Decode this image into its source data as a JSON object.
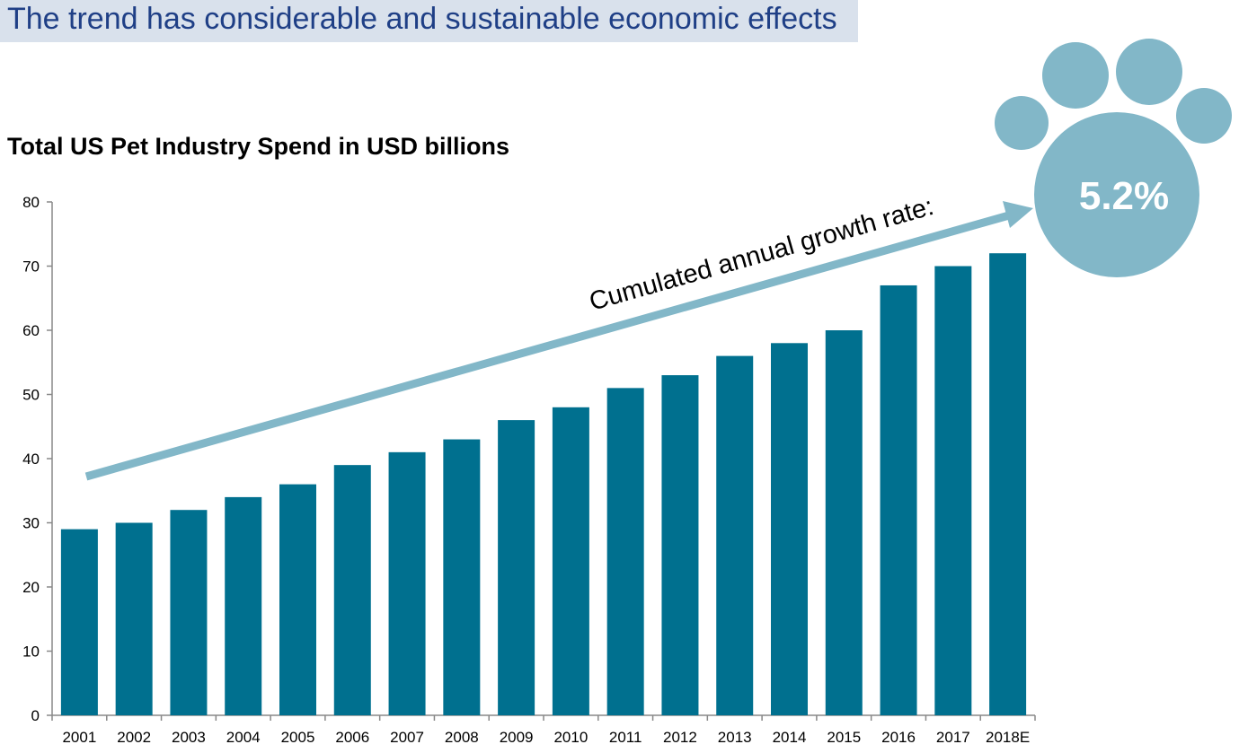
{
  "slide": {
    "title": "The trend has considerable and sustainable economic effects"
  },
  "colors": {
    "bar": "#00708f",
    "arrow": "#82b7c8",
    "paw": "#82b7c8",
    "title_band": "#d9e1ec",
    "title_text": "#1f3f86"
  },
  "annotation": {
    "arrow_label": "Cumulated annual growth rate:",
    "cagr_value": "5.2%",
    "paw_icon": "paw-print-icon"
  },
  "chart_data": {
    "type": "bar",
    "title": "Total US Pet Industry Spend in USD billions",
    "xlabel": "",
    "ylabel": "",
    "ylim": [
      0,
      80
    ],
    "yticks": [
      0,
      10,
      20,
      30,
      40,
      50,
      60,
      70,
      80
    ],
    "grid": false,
    "categories": [
      "2001",
      "2002",
      "2003",
      "2004",
      "2005",
      "2006",
      "2007",
      "2008",
      "2009",
      "2010",
      "2011",
      "2012",
      "2013",
      "2014",
      "2015",
      "2016",
      "2017",
      "2018E"
    ],
    "values": [
      29,
      30,
      32,
      34,
      36,
      39,
      41,
      43,
      46,
      48,
      51,
      53,
      56,
      58,
      60,
      67,
      70,
      72
    ]
  }
}
